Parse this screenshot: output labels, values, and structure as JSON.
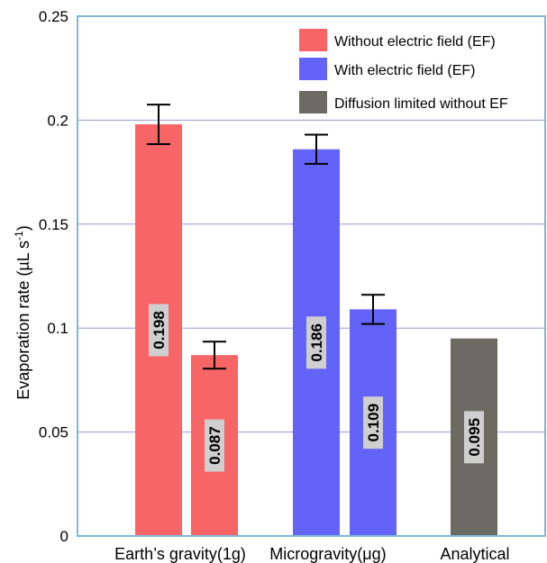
{
  "chart_data": {
    "type": "bar",
    "ylabel": "Evaporation rate (µL s",
    "ylabel_sup": "-1",
    "ylabel_close": ")",
    "ylim": [
      0,
      0.25
    ],
    "yticks": [
      0,
      0.05,
      0.1,
      0.15,
      0.2,
      0.25
    ],
    "ytick_labels": [
      "0",
      "0.05",
      "0.1",
      "0.15",
      "0.2",
      "0.25"
    ],
    "grid": "horizontal",
    "legend_position": "top-right",
    "categories": [
      "Earth’s gravity(1g)",
      "Microgravity(μg)",
      "Analytical"
    ],
    "series": [
      {
        "name": "Without electric field (EF)",
        "color": "#F76566",
        "values": [
          0.198,
          0.087,
          null
        ],
        "errors": [
          0.0095,
          0.0065,
          null
        ],
        "labels": [
          "0.198",
          "0.087",
          null
        ]
      },
      {
        "name": "With electric field (EF)",
        "color": "#6363F7",
        "values": [
          0.186,
          0.109,
          null
        ],
        "errors": [
          0.007,
          0.007,
          null
        ],
        "labels": [
          "0.186",
          "0.109",
          null
        ]
      },
      {
        "name": "Diffusion limited without EF",
        "color": "#6B6B63",
        "values": [
          null,
          null,
          0.095
        ],
        "errors": [
          null,
          null,
          null
        ],
        "labels": [
          null,
          null,
          "0.095"
        ]
      }
    ],
    "colors": {
      "grid": "#9A9AD0",
      "axis_frame": "#7FB8D8",
      "label_box": "#CFCFCF"
    }
  }
}
